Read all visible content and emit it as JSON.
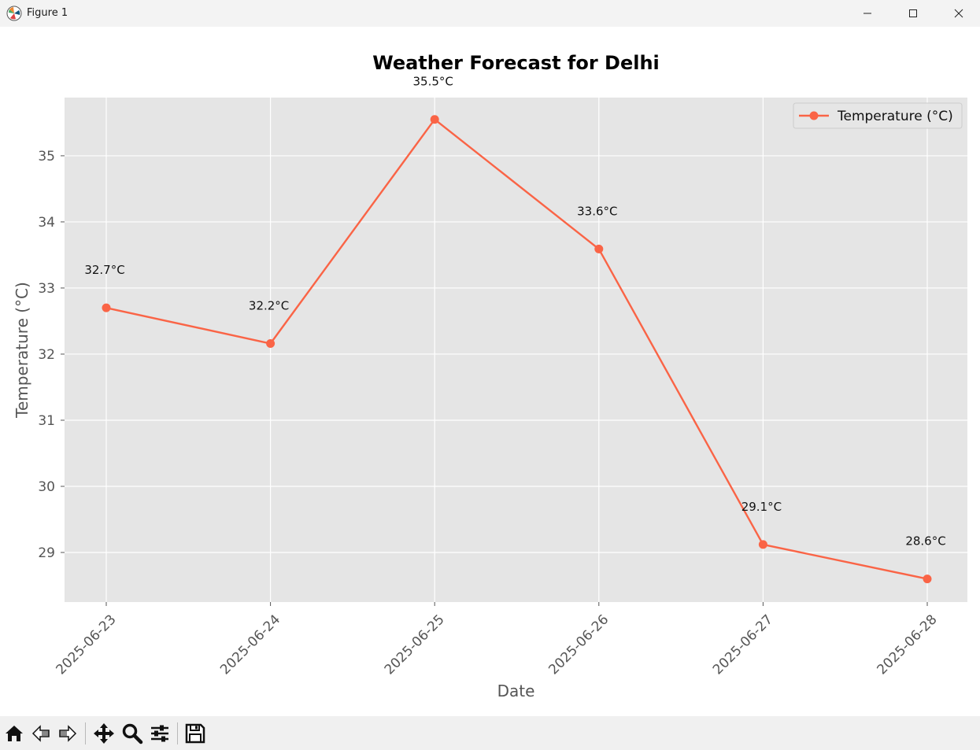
{
  "window": {
    "title": "Figure 1",
    "buttons": {
      "minimize": "minimize-icon",
      "maximize": "maximize-icon",
      "close": "close-icon"
    }
  },
  "toolbar": {
    "items": [
      "home-icon",
      "back-arrow-icon",
      "forward-arrow-icon",
      "pan-icon",
      "zoom-icon",
      "configure-subplots-icon",
      "save-icon"
    ]
  },
  "colors": {
    "line": "#fa6446",
    "plot_background": "#e5e5e5",
    "grid": "#ffffff",
    "tick_text": "#555555"
  },
  "chart_data": {
    "type": "line",
    "title": "Weather Forecast for Delhi",
    "xlabel": "Date",
    "ylabel": "Temperature (°C)",
    "x": [
      "2025-06-23",
      "2025-06-24",
      "2025-06-25",
      "2025-06-26",
      "2025-06-27",
      "2025-06-28"
    ],
    "series": [
      {
        "name": "Temperature (°C)",
        "values": [
          32.7,
          32.16,
          35.55,
          33.59,
          29.12,
          28.6
        ],
        "labels": [
          "32.7°C",
          "32.2°C",
          "35.5°C",
          "33.6°C",
          "29.1°C",
          "28.6°C"
        ]
      }
    ],
    "y_ticks": [
      "29",
      "30",
      "31",
      "32",
      "33",
      "34",
      "35"
    ],
    "ylim": [
      28.25,
      35.88
    ],
    "grid": true,
    "legend": "top-right"
  }
}
